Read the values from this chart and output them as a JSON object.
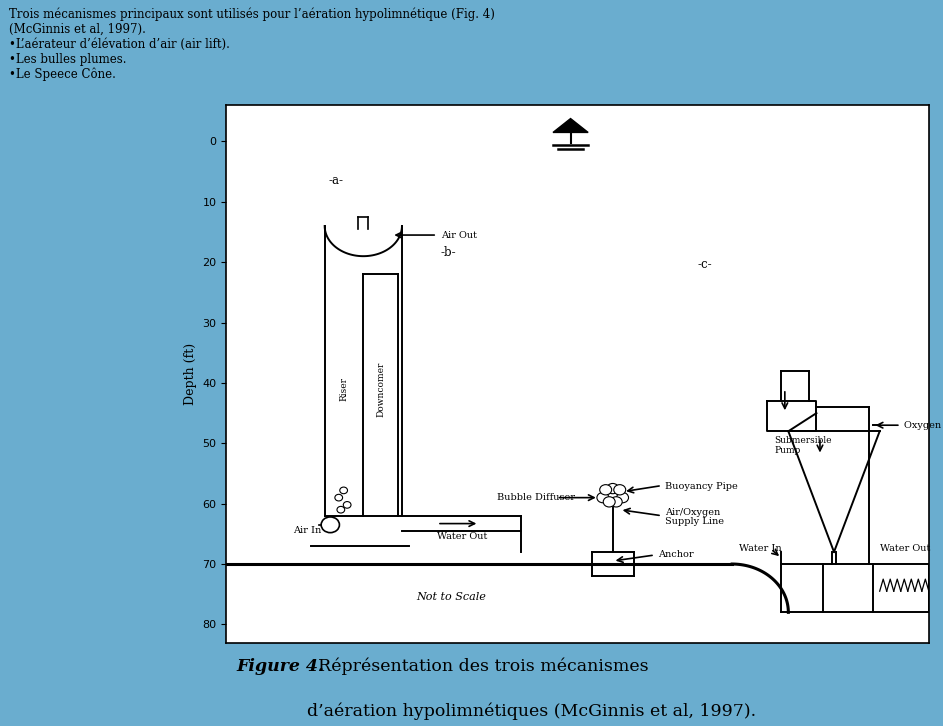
{
  "bg_color": "#6aadcf",
  "diagram_bg": "#ffffff",
  "body_text_line1": "Trois mécanismes principaux sont utilisés pour l’aération hypolimnétique (Fig. 4)",
  "body_text_line2": "(McGinnis et al, 1997).",
  "body_text_line3": "•L’aérateur d’élévation d’air (air lift).",
  "body_text_line4": "•Les bulles plumes.",
  "body_text_line5": "•Le Speece Cône.",
  "caption_italic": "Figure 4.",
  "caption_regular": "  Réprésentation des trois mécanismes",
  "caption_regular2": "d’aération hypolimnétiques (McGinnis et al, 1997).",
  "depth_label": "Depth (ft)",
  "yticks": [
    0,
    10,
    20,
    30,
    40,
    50,
    60,
    70,
    80
  ],
  "ylim": [
    83,
    -6
  ],
  "xlim": [
    0,
    100
  ]
}
